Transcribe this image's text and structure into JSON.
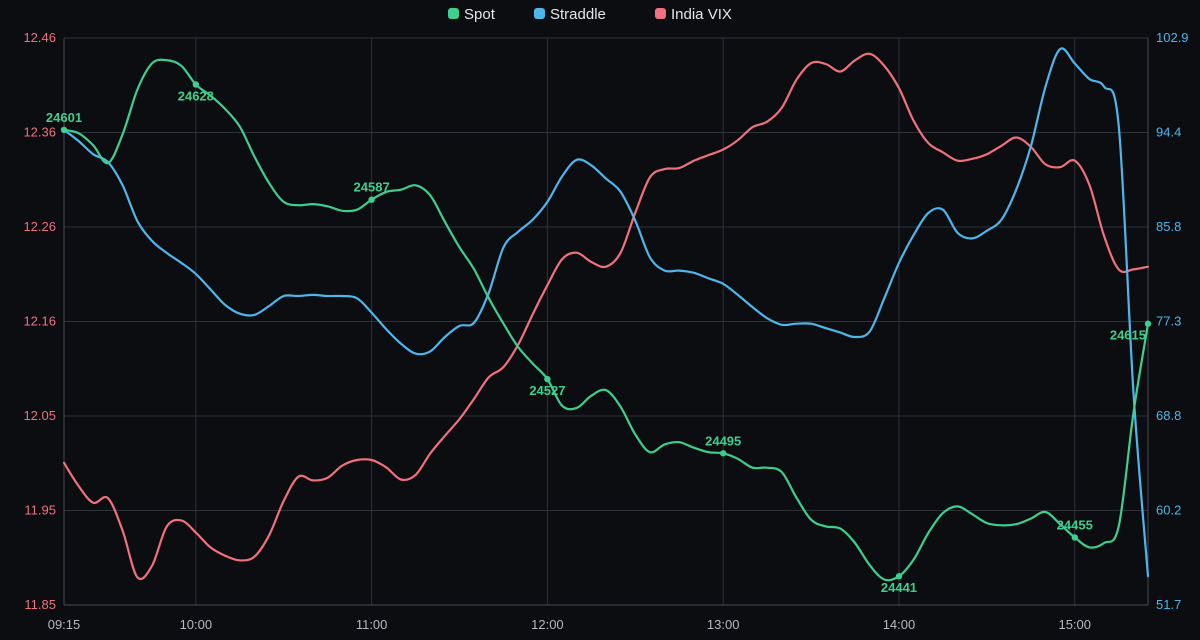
{
  "chart_data": {
    "type": "line",
    "legend_position": "top-center",
    "grid": true,
    "x_ticks": [
      "09:15",
      "10:00",
      "11:00",
      "12:00",
      "13:00",
      "14:00",
      "15:00"
    ],
    "x_range": [
      "09:15",
      "15:25"
    ],
    "y_left": {
      "ticks": [
        "12.46",
        "12.36",
        "12.26",
        "12.16",
        "12.05",
        "11.95",
        "11.85"
      ],
      "range": [
        11.85,
        12.46
      ],
      "color": "#f0707e"
    },
    "y_right": {
      "ticks": [
        "102.9",
        "94.4",
        "85.8",
        "77.3",
        "68.8",
        "60.2",
        "51.7"
      ],
      "range": [
        51.7,
        102.9
      ],
      "color": "#4fb6ec"
    },
    "series": [
      {
        "name": "Spot",
        "color": "#3ecf8e",
        "axis": "right",
        "points": [
          [
            "09:15",
            94.6
          ],
          [
            "09:20",
            94.3
          ],
          [
            "09:25",
            93.2
          ],
          [
            "09:30",
            91.6
          ],
          [
            "09:35",
            94.2
          ],
          [
            "09:40",
            98.2
          ],
          [
            "09:45",
            100.6
          ],
          [
            "09:50",
            100.9
          ],
          [
            "09:55",
            100.4
          ],
          [
            "10:00",
            98.7
          ],
          [
            "10:05",
            97.7
          ],
          [
            "10:10",
            96.5
          ],
          [
            "10:15",
            94.9
          ],
          [
            "10:20",
            92.2
          ],
          [
            "10:25",
            89.8
          ],
          [
            "10:30",
            88.1
          ],
          [
            "10:35",
            87.8
          ],
          [
            "10:40",
            87.9
          ],
          [
            "10:45",
            87.7
          ],
          [
            "10:50",
            87.3
          ],
          [
            "10:55",
            87.4
          ],
          [
            "11:00",
            88.3
          ],
          [
            "11:05",
            89.0
          ],
          [
            "11:10",
            89.2
          ],
          [
            "11:15",
            89.6
          ],
          [
            "11:20",
            88.7
          ],
          [
            "11:25",
            86.3
          ],
          [
            "11:30",
            84.0
          ],
          [
            "11:35",
            82.0
          ],
          [
            "11:40",
            79.4
          ],
          [
            "11:45",
            77.1
          ],
          [
            "11:50",
            75.0
          ],
          [
            "11:55",
            73.5
          ],
          [
            "12:00",
            72.1
          ],
          [
            "12:05",
            69.7
          ],
          [
            "12:10",
            69.5
          ],
          [
            "12:15",
            70.6
          ],
          [
            "12:20",
            71.1
          ],
          [
            "12:25",
            69.6
          ],
          [
            "12:30",
            67.1
          ],
          [
            "12:35",
            65.5
          ],
          [
            "12:40",
            66.2
          ],
          [
            "12:45",
            66.4
          ],
          [
            "12:50",
            65.9
          ],
          [
            "12:55",
            65.5
          ],
          [
            "13:00",
            65.4
          ],
          [
            "13:05",
            64.9
          ],
          [
            "13:10",
            64.1
          ],
          [
            "13:15",
            64.1
          ],
          [
            "13:20",
            63.7
          ],
          [
            "13:25",
            61.4
          ],
          [
            "13:30",
            59.4
          ],
          [
            "13:35",
            58.8
          ],
          [
            "13:40",
            58.6
          ],
          [
            "13:45",
            57.3
          ],
          [
            "13:50",
            55.3
          ],
          [
            "13:55",
            54.0
          ],
          [
            "14:00",
            54.3
          ],
          [
            "14:05",
            55.8
          ],
          [
            "14:10",
            58.2
          ],
          [
            "14:15",
            60.0
          ],
          [
            "14:20",
            60.6
          ],
          [
            "14:25",
            59.9
          ],
          [
            "14:30",
            59.1
          ],
          [
            "14:35",
            58.9
          ],
          [
            "14:40",
            59.0
          ],
          [
            "14:45",
            59.5
          ],
          [
            "14:50",
            60.1
          ],
          [
            "14:55",
            59.0
          ],
          [
            "15:00",
            57.8
          ],
          [
            "15:05",
            56.9
          ],
          [
            "15:10",
            57.3
          ],
          [
            "15:15",
            58.8
          ],
          [
            "15:20",
            69.0
          ],
          [
            "15:25",
            77.1
          ]
        ],
        "labels": [
          {
            "x": "09:15",
            "text": "24601",
            "place": "above"
          },
          {
            "x": "10:00",
            "text": "24628",
            "place": "below"
          },
          {
            "x": "11:00",
            "text": "24587",
            "place": "above"
          },
          {
            "x": "12:00",
            "text": "24527",
            "place": "below"
          },
          {
            "x": "13:00",
            "text": "24495",
            "place": "above"
          },
          {
            "x": "14:00",
            "text": "24441",
            "place": "below"
          },
          {
            "x": "15:00",
            "text": "24455",
            "place": "above"
          },
          {
            "x": "15:25",
            "text": "24615",
            "place": "below-left"
          }
        ]
      },
      {
        "name": "Straddle",
        "color": "#4fb6ec",
        "axis": "right",
        "points": [
          [
            "09:15",
            94.6
          ],
          [
            "09:20",
            93.6
          ],
          [
            "09:25",
            92.4
          ],
          [
            "09:30",
            91.7
          ],
          [
            "09:35",
            89.6
          ],
          [
            "09:40",
            86.4
          ],
          [
            "09:45",
            84.6
          ],
          [
            "09:50",
            83.5
          ],
          [
            "09:55",
            82.6
          ],
          [
            "10:00",
            81.6
          ],
          [
            "10:05",
            80.2
          ],
          [
            "10:10",
            78.8
          ],
          [
            "10:15",
            78.0
          ],
          [
            "10:20",
            77.9
          ],
          [
            "10:25",
            78.7
          ],
          [
            "10:30",
            79.6
          ],
          [
            "10:35",
            79.6
          ],
          [
            "10:40",
            79.7
          ],
          [
            "10:45",
            79.6
          ],
          [
            "10:50",
            79.6
          ],
          [
            "10:55",
            79.4
          ],
          [
            "11:00",
            78.1
          ],
          [
            "11:05",
            76.6
          ],
          [
            "11:10",
            75.3
          ],
          [
            "11:15",
            74.4
          ],
          [
            "11:20",
            74.6
          ],
          [
            "11:25",
            75.9
          ],
          [
            "11:30",
            76.9
          ],
          [
            "11:35",
            77.2
          ],
          [
            "11:40",
            79.9
          ],
          [
            "11:45",
            84.0
          ],
          [
            "11:50",
            85.4
          ],
          [
            "11:55",
            86.5
          ],
          [
            "12:00",
            88.1
          ],
          [
            "12:05",
            90.4
          ],
          [
            "12:10",
            91.9
          ],
          [
            "12:15",
            91.4
          ],
          [
            "12:20",
            90.2
          ],
          [
            "12:25",
            89.0
          ],
          [
            "12:30",
            86.4
          ],
          [
            "12:35",
            83.1
          ],
          [
            "12:40",
            81.9
          ],
          [
            "12:45",
            81.9
          ],
          [
            "12:50",
            81.7
          ],
          [
            "12:55",
            81.2
          ],
          [
            "13:00",
            80.7
          ],
          [
            "13:05",
            79.7
          ],
          [
            "13:10",
            78.6
          ],
          [
            "13:15",
            77.6
          ],
          [
            "13:20",
            77.0
          ],
          [
            "13:25",
            77.1
          ],
          [
            "13:30",
            77.1
          ],
          [
            "13:35",
            76.7
          ],
          [
            "13:40",
            76.3
          ],
          [
            "13:45",
            75.9
          ],
          [
            "13:50",
            76.4
          ],
          [
            "13:55",
            79.4
          ],
          [
            "14:00",
            82.6
          ],
          [
            "14:05",
            85.1
          ],
          [
            "14:10",
            87.1
          ],
          [
            "14:15",
            87.4
          ],
          [
            "14:20",
            85.3
          ],
          [
            "14:25",
            84.8
          ],
          [
            "14:30",
            85.5
          ],
          [
            "14:35",
            86.5
          ],
          [
            "14:40",
            89.2
          ],
          [
            "14:45",
            93.1
          ],
          [
            "14:50",
            98.5
          ],
          [
            "14:55",
            101.9
          ],
          [
            "15:00",
            100.6
          ],
          [
            "15:05",
            99.2
          ],
          [
            "15:10",
            98.5
          ],
          [
            "15:15",
            95.0
          ],
          [
            "15:20",
            71.0
          ],
          [
            "15:25",
            54.3
          ]
        ]
      },
      {
        "name": "India VIX",
        "color": "#f0707e",
        "axis": "left",
        "points": [
          [
            "09:15",
            12.003
          ],
          [
            "09:20",
            11.978
          ],
          [
            "09:25",
            11.96
          ],
          [
            "09:30",
            11.965
          ],
          [
            "09:35",
            11.93
          ],
          [
            "09:40",
            11.88
          ],
          [
            "09:45",
            11.892
          ],
          [
            "09:50",
            11.934
          ],
          [
            "09:55",
            11.941
          ],
          [
            "10:00",
            11.928
          ],
          [
            "10:05",
            11.912
          ],
          [
            "10:10",
            11.903
          ],
          [
            "10:15",
            11.898
          ],
          [
            "10:20",
            11.902
          ],
          [
            "10:25",
            11.925
          ],
          [
            "10:30",
            11.962
          ],
          [
            "10:35",
            11.988
          ],
          [
            "10:40",
            11.984
          ],
          [
            "10:45",
            11.987
          ],
          [
            "10:50",
            12.0
          ],
          [
            "10:55",
            12.006
          ],
          [
            "11:00",
            12.006
          ],
          [
            "11:05",
            11.998
          ],
          [
            "11:10",
            11.985
          ],
          [
            "11:15",
            11.99
          ],
          [
            "11:20",
            12.013
          ],
          [
            "11:25",
            12.032
          ],
          [
            "11:30",
            12.05
          ],
          [
            "11:35",
            12.072
          ],
          [
            "11:40",
            12.095
          ],
          [
            "11:45",
            12.106
          ],
          [
            "11:50",
            12.13
          ],
          [
            "11:55",
            12.163
          ],
          [
            "12:00",
            12.194
          ],
          [
            "12:05",
            12.222
          ],
          [
            "12:10",
            12.229
          ],
          [
            "12:15",
            12.219
          ],
          [
            "12:20",
            12.214
          ],
          [
            "12:25",
            12.229
          ],
          [
            "12:30",
            12.272
          ],
          [
            "12:35",
            12.31
          ],
          [
            "12:40",
            12.319
          ],
          [
            "12:45",
            12.32
          ],
          [
            "12:50",
            12.328
          ],
          [
            "12:55",
            12.334
          ],
          [
            "13:00",
            12.34
          ],
          [
            "13:05",
            12.35
          ],
          [
            "13:10",
            12.364
          ],
          [
            "13:15",
            12.37
          ],
          [
            "13:20",
            12.385
          ],
          [
            "13:25",
            12.415
          ],
          [
            "13:30",
            12.433
          ],
          [
            "13:35",
            12.432
          ],
          [
            "13:40",
            12.424
          ],
          [
            "13:45",
            12.436
          ],
          [
            "13:50",
            12.443
          ],
          [
            "13:55",
            12.43
          ],
          [
            "14:00",
            12.406
          ],
          [
            "14:05",
            12.371
          ],
          [
            "14:10",
            12.347
          ],
          [
            "14:15",
            12.337
          ],
          [
            "14:20",
            12.328
          ],
          [
            "14:25",
            12.33
          ],
          [
            "14:30",
            12.335
          ],
          [
            "14:35",
            12.344
          ],
          [
            "14:40",
            12.353
          ],
          [
            "14:45",
            12.343
          ],
          [
            "14:50",
            12.324
          ],
          [
            "14:55",
            12.321
          ],
          [
            "15:00",
            12.328
          ],
          [
            "15:05",
            12.302
          ],
          [
            "15:10",
            12.247
          ],
          [
            "15:15",
            12.211
          ],
          [
            "15:20",
            12.211
          ],
          [
            "15:25",
            12.214
          ]
        ]
      }
    ]
  }
}
